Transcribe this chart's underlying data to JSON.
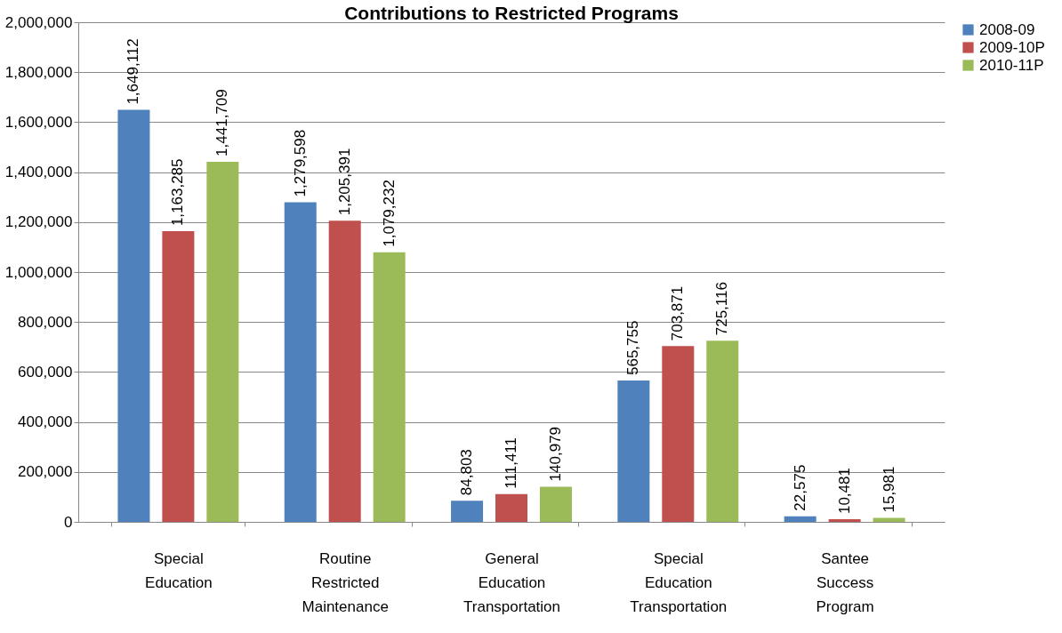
{
  "chart_data": {
    "type": "bar",
    "title": "Contributions to Restricted Programs",
    "categories": [
      "Special Education",
      "Routine Restricted Maintenance",
      "General Education Transportation",
      "Special Education Transportation",
      "Santee Success Program"
    ],
    "series": [
      {
        "name": "2008-09",
        "color": "#4f81bd",
        "values": [
          1649112,
          1279598,
          84803,
          565755,
          22575
        ],
        "value_labels": [
          "1,649,112",
          "1,279,598",
          "84,803",
          "565,755",
          "22,575"
        ]
      },
      {
        "name": "2009-10P",
        "color": "#c0504d",
        "values": [
          1163285,
          1205391,
          111411,
          703871,
          10481
        ],
        "value_labels": [
          "1,163,285",
          "1,205,391",
          "111,411",
          "703,871",
          "10,481"
        ]
      },
      {
        "name": "2010-11P",
        "color": "#9bbb59",
        "values": [
          1441709,
          1079232,
          140979,
          725116,
          15981
        ],
        "value_labels": [
          "1,441,709",
          "1,079,232",
          "140,979",
          "725,116",
          "15,981"
        ]
      }
    ],
    "ylim": [
      0,
      2000000
    ],
    "yticks": [
      {
        "value": 0,
        "label": "0"
      },
      {
        "value": 200000,
        "label": "200,000"
      },
      {
        "value": 400000,
        "label": "400,000"
      },
      {
        "value": 600000,
        "label": "600,000"
      },
      {
        "value": 800000,
        "label": "800,000"
      },
      {
        "value": 1000000,
        "label": "1,000,000"
      },
      {
        "value": 1200000,
        "label": "1,200,000"
      },
      {
        "value": 1400000,
        "label": "1,400,000"
      },
      {
        "value": 1600000,
        "label": "1,600,000"
      },
      {
        "value": 1800000,
        "label": "1,800,000"
      },
      {
        "value": 2000000,
        "label": "2,000,000"
      }
    ],
    "grid": "y",
    "legend": "right"
  }
}
